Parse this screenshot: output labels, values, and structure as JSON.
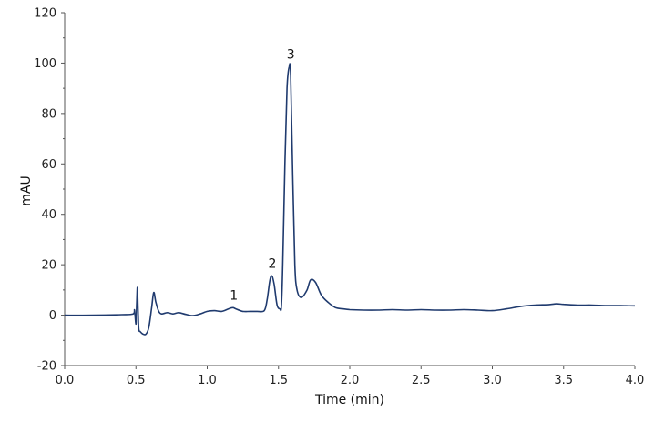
{
  "chart_data": {
    "type": "line",
    "title": "",
    "xlabel": "Time (min)",
    "ylabel": "mAU",
    "xlim": [
      0.0,
      4.0
    ],
    "ylim": [
      -20,
      120
    ],
    "x_ticks": [
      "0.0",
      "0.5",
      "1.0",
      "1.5",
      "2.0",
      "2.5",
      "3.0",
      "3.5",
      "4.0"
    ],
    "y_ticks": [
      "-20",
      "0",
      "20",
      "40",
      "60",
      "80",
      "100",
      "120"
    ],
    "y_minor_tick_step": 10,
    "grid": false,
    "legend": null,
    "line_color": "#1f3a6e",
    "series": [
      {
        "name": "chromatogram",
        "x": [
          0.0,
          0.2,
          0.4,
          0.48,
          0.49,
          0.5,
          0.505,
          0.51,
          0.515,
          0.52,
          0.53,
          0.55,
          0.57,
          0.59,
          0.61,
          0.625,
          0.64,
          0.66,
          0.68,
          0.72,
          0.76,
          0.8,
          0.85,
          0.9,
          0.95,
          1.0,
          1.05,
          1.1,
          1.15,
          1.18,
          1.2,
          1.25,
          1.3,
          1.35,
          1.4,
          1.42,
          1.44,
          1.455,
          1.47,
          1.49,
          1.51,
          1.52,
          1.53,
          1.545,
          1.56,
          1.575,
          1.585,
          1.6,
          1.615,
          1.63,
          1.66,
          1.7,
          1.725,
          1.76,
          1.8,
          1.85,
          1.9,
          1.95,
          2.0,
          2.1,
          2.2,
          2.3,
          2.4,
          2.5,
          2.6,
          2.7,
          2.8,
          2.9,
          3.0,
          3.1,
          3.2,
          3.3,
          3.4,
          3.45,
          3.5,
          3.6,
          3.7,
          3.8,
          3.9,
          4.0
        ],
        "y": [
          0.0,
          0.0,
          0.2,
          0.5,
          2.0,
          -3.5,
          4.0,
          11.0,
          2.0,
          -5.5,
          -6.5,
          -7.5,
          -7.5,
          -5.0,
          3.0,
          9.0,
          5.0,
          1.5,
          0.5,
          1.0,
          0.5,
          1.0,
          0.3,
          -0.2,
          0.5,
          1.5,
          1.8,
          1.5,
          2.5,
          3.0,
          2.5,
          1.5,
          1.5,
          1.5,
          1.8,
          6.0,
          14.0,
          15.5,
          12.0,
          4.0,
          2.5,
          3.5,
          20.0,
          60.0,
          90.0,
          98.5,
          95.0,
          55.0,
          20.0,
          10.0,
          7.0,
          10.0,
          14.0,
          13.0,
          8.0,
          5.0,
          3.0,
          2.5,
          2.2,
          2.0,
          2.0,
          2.2,
          2.0,
          2.2,
          2.0,
          2.0,
          2.2,
          2.0,
          1.8,
          2.5,
          3.5,
          4.0,
          4.2,
          4.5,
          4.3,
          4.0,
          4.0,
          3.8,
          3.8,
          3.7
        ]
      }
    ],
    "annotations": [
      {
        "text": "1",
        "x": 1.18,
        "y": 3.0
      },
      {
        "text": "2",
        "x": 1.45,
        "y": 15.5
      },
      {
        "text": "3",
        "x": 1.58,
        "y": 98.5
      }
    ]
  }
}
